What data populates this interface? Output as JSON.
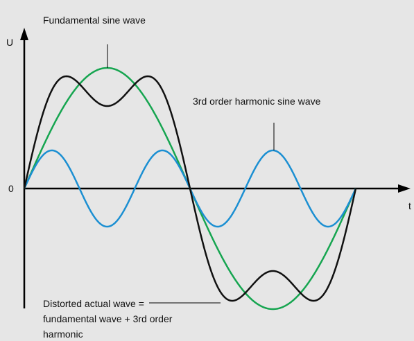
{
  "title": "Fundamental sine wave",
  "axes": {
    "y_label": "U",
    "x_label": "t",
    "origin_label": "0"
  },
  "annotations": {
    "harmonic": "3rd order harmonic sine wave",
    "distorted": [
      "Distorted actual wave =",
      "fundamental wave + 3rd order",
      "harmonic"
    ]
  }
}
